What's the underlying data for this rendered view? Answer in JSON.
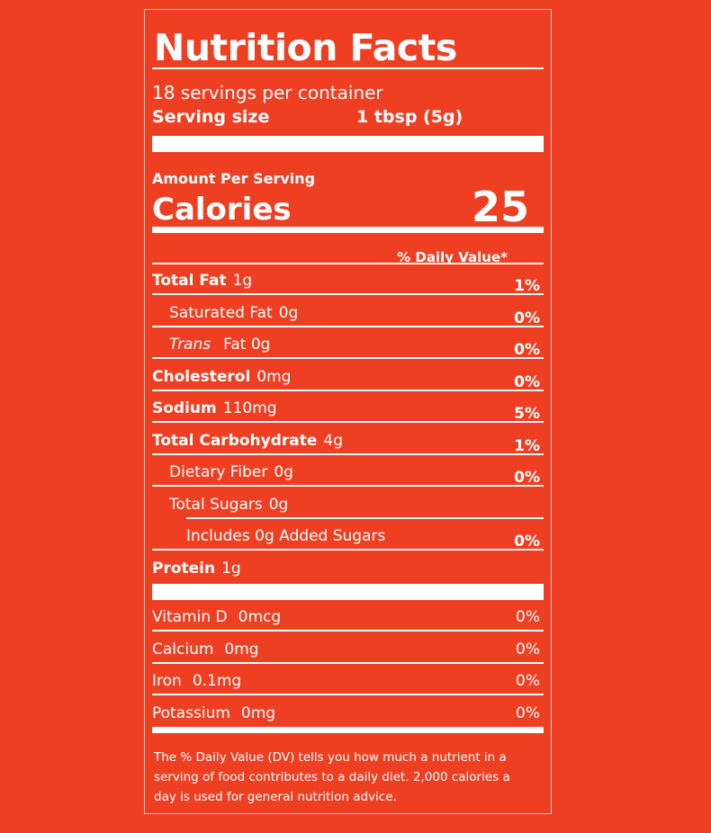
{
  "title": "Nutrition Facts",
  "servings_per_container": "18 servings per container",
  "serving_size_label": "Serving size",
  "serving_size_value": "1 tbsp (5g)",
  "amount_per_serving": "Amount Per Serving",
  "calories_label": "Calories",
  "calories_value": "25",
  "daily_value_header": "% Daily Value*",
  "nutrients": [
    {
      "name": "Total Fat",
      "amount": "1g",
      "dv": "1%",
      "bold": true,
      "indent": 0
    },
    {
      "name": "Saturated Fat",
      "amount": "0g",
      "dv": "0%",
      "bold": false,
      "indent": 1
    },
    {
      "name": "Trans",
      "amount": "Fat 0g",
      "dv": "0%",
      "bold": false,
      "indent": 1,
      "italic": true
    },
    {
      "name": "Cholesterol",
      "amount": "0mg",
      "dv": "0%",
      "bold": true,
      "indent": 0
    },
    {
      "name": "Sodium",
      "amount": "110mg",
      "dv": "5%",
      "bold": true,
      "indent": 0
    },
    {
      "name": "Total Carbohydrate",
      "amount": "4g",
      "dv": "1%",
      "bold": true,
      "indent": 0
    },
    {
      "name": "Dietary Fiber",
      "amount": "0g",
      "dv": "0%",
      "bold": false,
      "indent": 1
    },
    {
      "name": "Total Sugars",
      "amount": "0g",
      "dv": "",
      "bold": false,
      "indent": 1
    },
    {
      "name": "Includes 0g Added Sugars",
      "amount": "",
      "dv": "0%",
      "bold": false,
      "indent": 2
    },
    {
      "name": "Protein",
      "amount": "1g",
      "dv": "",
      "bold": true,
      "indent": 0
    }
  ],
  "vitamins": [
    {
      "name": "Vitamin D",
      "amount": "0mcg",
      "dv": "0%"
    },
    {
      "name": "Calcium",
      "amount": "0mg",
      "dv": "0%"
    },
    {
      "name": "Iron",
      "amount": "0.1mg",
      "dv": "0%"
    },
    {
      "name": "Potassium",
      "amount": "0mg",
      "dv": "0%"
    }
  ],
  "footnote": "The % Daily Value (DV) tells you how much a nutrient in a serving of food contributes to a daily diet. 2,000 calories a day is used for general nutrition advice.",
  "colors": {
    "background": "#ee3f22",
    "text": "#ffffff"
  }
}
